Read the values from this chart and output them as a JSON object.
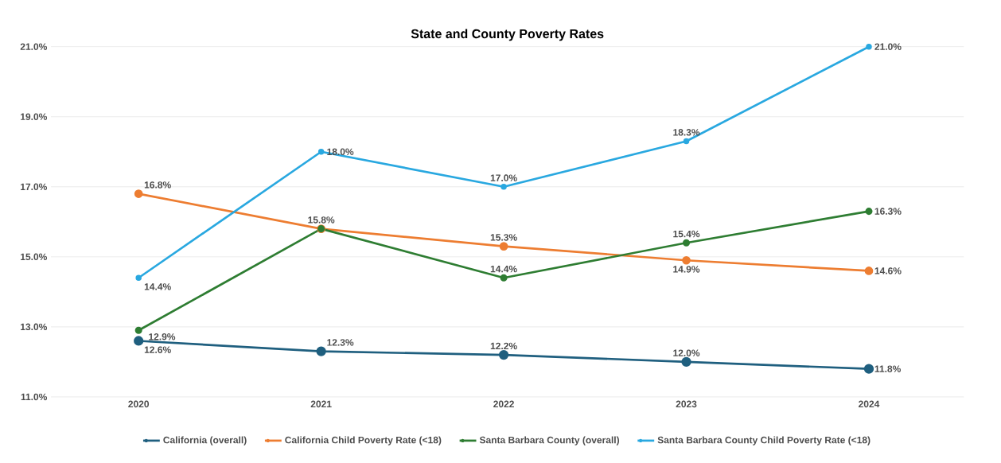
{
  "chart_data": {
    "type": "line",
    "title": "State and County Poverty Rates",
    "categories": [
      "2020",
      "2021",
      "2022",
      "2023",
      "2024"
    ],
    "series": [
      {
        "name": "California (overall)",
        "color": "#1f5f7f",
        "values": [
          12.6,
          12.3,
          12.2,
          12.0,
          11.8
        ],
        "value_labels": [
          "12.6%",
          "12.3%",
          "12.2%",
          "12.0%",
          "11.8%"
        ]
      },
      {
        "name": "California Child Poverty Rate (<18)",
        "color": "#ed7d31",
        "values": [
          16.8,
          15.8,
          15.3,
          14.9,
          14.6
        ],
        "value_labels": [
          "16.8%",
          null,
          "15.3%",
          "14.9%",
          "14.6%"
        ]
      },
      {
        "name": "Santa Barbara County (overall)",
        "color": "#2e7d32",
        "values": [
          12.9,
          15.8,
          14.4,
          15.4,
          16.3
        ],
        "value_labels": [
          "12.9%",
          "15.8%",
          "14.4%",
          "15.4%",
          "16.3%"
        ]
      },
      {
        "name": "Santa Barbara County Child Poverty Rate (<18)",
        "color": "#29a8e0",
        "values": [
          14.4,
          18.0,
          17.0,
          18.3,
          21.0
        ],
        "value_labels": [
          "14.4%",
          "18.0%",
          "17.0%",
          "18.3%",
          "21.0%"
        ]
      }
    ],
    "ylim": [
      11,
      21
    ],
    "yticks": [
      {
        "value": 11,
        "label": "11.0%"
      },
      {
        "value": 13,
        "label": "13.0%"
      },
      {
        "value": 15,
        "label": "15.0%"
      },
      {
        "value": 17,
        "label": "17.0%"
      },
      {
        "value": 19,
        "label": "19.0%"
      },
      {
        "value": 21,
        "label": "21.0%"
      }
    ],
    "grid": "y",
    "legend": "bottom",
    "marker": "circle",
    "line_style": "solid"
  }
}
